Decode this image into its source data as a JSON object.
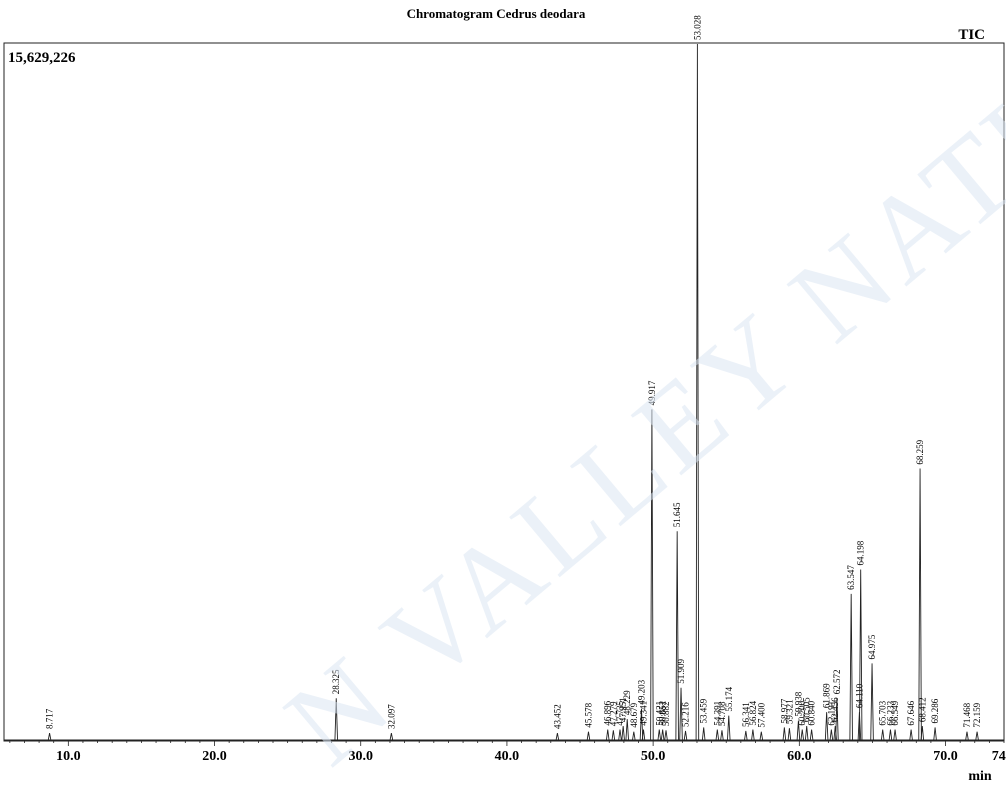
{
  "chart_data": {
    "type": "line",
    "title": "Chromatogram Cedrus deodara",
    "signal_label": "TIC",
    "y_max_label": "15,629,226",
    "y_max": 15629226,
    "xlabel": "min",
    "xlim": [
      5.6,
      74.0
    ],
    "x_ticks": [
      "10.0",
      "20.0",
      "30.0",
      "40.0",
      "50.0",
      "60.0",
      "70.0",
      "74.0"
    ],
    "peaks": [
      {
        "rt": 8.717,
        "label": "8.717",
        "height": 0.01
      },
      {
        "rt": 28.325,
        "label": "28.325",
        "height": 0.06
      },
      {
        "rt": 32.097,
        "label": "32.097",
        "height": 0.01
      },
      {
        "rt": 43.452,
        "label": "43.452",
        "height": 0.01
      },
      {
        "rt": 45.578,
        "label": "45.578",
        "height": 0.012
      },
      {
        "rt": 46.896,
        "label": "46.896",
        "height": 0.015
      },
      {
        "rt": 47.279,
        "label": "47.279",
        "height": 0.014
      },
      {
        "rt": 47.735,
        "label": "47.735",
        "height": 0.015
      },
      {
        "rt": 47.951,
        "label": "47.951",
        "height": 0.02
      },
      {
        "rt": 48.229,
        "label": "48.229",
        "height": 0.03
      },
      {
        "rt": 48.679,
        "label": "48.679",
        "height": 0.012
      },
      {
        "rt": 49.203,
        "label": "49.203",
        "height": 0.045
      },
      {
        "rt": 49.341,
        "label": "49.341",
        "height": 0.015
      },
      {
        "rt": 49.917,
        "label": "49.917",
        "height": 0.475
      },
      {
        "rt": 50.421,
        "label": "50.421",
        "height": 0.015
      },
      {
        "rt": 50.652,
        "label": "50.652",
        "height": 0.015
      },
      {
        "rt": 50.882,
        "label": "50.882",
        "height": 0.014
      },
      {
        "rt": 51.645,
        "label": "51.645",
        "height": 0.3
      },
      {
        "rt": 51.909,
        "label": "51.909",
        "height": 0.075
      },
      {
        "rt": 52.216,
        "label": "52.216",
        "height": 0.013
      },
      {
        "rt": 53.028,
        "label": "53.028",
        "height": 1.0
      },
      {
        "rt": 53.459,
        "label": "53.459",
        "height": 0.018
      },
      {
        "rt": 54.391,
        "label": "54.391",
        "height": 0.015
      },
      {
        "rt": 54.708,
        "label": "54.708",
        "height": 0.014
      },
      {
        "rt": 55.174,
        "label": "55.174",
        "height": 0.035
      },
      {
        "rt": 56.341,
        "label": "56.341",
        "height": 0.013
      },
      {
        "rt": 56.824,
        "label": "56.824",
        "height": 0.015
      },
      {
        "rt": 57.4,
        "label": "57.400",
        "height": 0.012
      },
      {
        "rt": 58.977,
        "label": "58.977",
        "height": 0.018
      },
      {
        "rt": 59.321,
        "label": "59.321",
        "height": 0.017
      },
      {
        "rt": 59.938,
        "label": "59.938",
        "height": 0.028
      },
      {
        "rt": 60.2,
        "label": "60.200",
        "height": 0.015
      },
      {
        "rt": 60.505,
        "label": "60.505",
        "height": 0.02
      },
      {
        "rt": 60.84,
        "label": "60.840",
        "height": 0.015
      },
      {
        "rt": 61.869,
        "label": "61.869",
        "height": 0.04
      },
      {
        "rt": 62.191,
        "label": "62.191",
        "height": 0.015
      },
      {
        "rt": 62.456,
        "label": "62.456",
        "height": 0.02
      },
      {
        "rt": 62.572,
        "label": "62.572",
        "height": 0.06
      },
      {
        "rt": 63.547,
        "label": "63.547",
        "height": 0.21
      },
      {
        "rt": 64.11,
        "label": "64.110",
        "height": 0.04
      },
      {
        "rt": 64.198,
        "label": "64.198",
        "height": 0.245
      },
      {
        "rt": 64.975,
        "label": "64.975",
        "height": 0.11
      },
      {
        "rt": 65.703,
        "label": "65.703",
        "height": 0.015
      },
      {
        "rt": 66.233,
        "label": "66.233",
        "height": 0.015
      },
      {
        "rt": 66.549,
        "label": "66.549",
        "height": 0.015
      },
      {
        "rt": 67.646,
        "label": "67.646",
        "height": 0.015
      },
      {
        "rt": 68.259,
        "label": "68.259",
        "height": 0.39
      },
      {
        "rt": 68.412,
        "label": "68.412",
        "height": 0.02
      },
      {
        "rt": 69.286,
        "label": "69.286",
        "height": 0.018
      },
      {
        "rt": 71.468,
        "label": "71.468",
        "height": 0.012
      },
      {
        "rt": 72.159,
        "label": "72.159",
        "height": 0.012
      }
    ]
  },
  "watermark_text": "N VALLEY NATURAL",
  "colors": {
    "ink": "#222222",
    "watermark": "#dbe6f3"
  }
}
